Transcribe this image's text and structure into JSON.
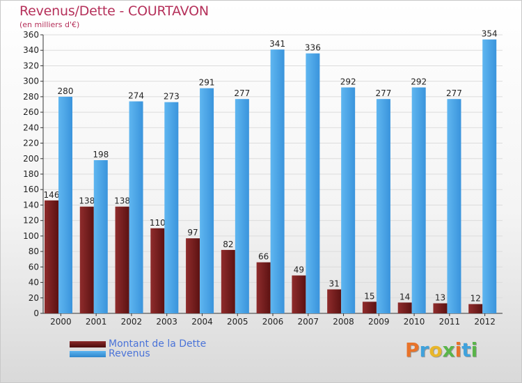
{
  "title": "Revenus/Dette - COURTAVON",
  "subtitle": "(en milliers d'€)",
  "chart_data": {
    "type": "bar",
    "categories": [
      "2000",
      "2001",
      "2002",
      "2003",
      "2004",
      "2005",
      "2006",
      "2007",
      "2008",
      "2009",
      "2010",
      "2011",
      "2012"
    ],
    "series": [
      {
        "name": "Montant de la Dette",
        "color": "#7a1c1c",
        "values": [
          146,
          138,
          138,
          110,
          97,
          82,
          66,
          49,
          31,
          15,
          14,
          13,
          12
        ]
      },
      {
        "name": "Revenus",
        "color": "#4aa3e8",
        "values": [
          280,
          198,
          274,
          273,
          291,
          277,
          341,
          336,
          292,
          277,
          292,
          277,
          354
        ]
      }
    ],
    "ylim": [
      0,
      360
    ],
    "yticks": [
      0,
      20,
      40,
      60,
      80,
      100,
      120,
      140,
      160,
      180,
      200,
      220,
      240,
      260,
      280,
      300,
      320,
      340,
      360
    ],
    "grid": true,
    "legend_position": "bottom-left"
  },
  "legend": {
    "debt_label": "Montant de la Dette",
    "revenue_label": "Revenus"
  },
  "logo": {
    "letters": [
      "P",
      "r",
      "o",
      "x",
      "i",
      "t",
      "i"
    ],
    "colors": [
      "#e8732a",
      "#3fa2dc",
      "#e8b62a",
      "#5ab54a",
      "#e8732a",
      "#3fa2dc",
      "#5ab54a"
    ]
  }
}
